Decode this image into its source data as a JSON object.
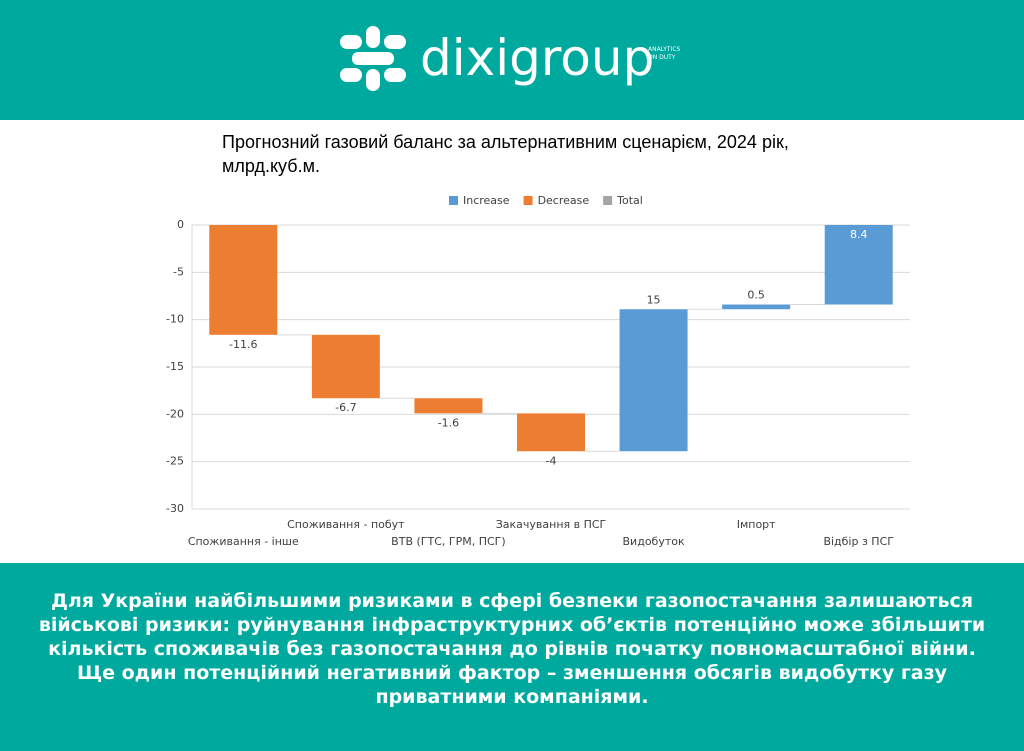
{
  "header": {
    "logo": "dixigroup",
    "tagline": [
      "ANALYTICS",
      "ON DUTY"
    ]
  },
  "chart_data": {
    "type": "waterfall",
    "title": "Прогнозний газовий баланс за альтернативним сценарієм, 2024 рік, млрд.куб.м.",
    "legend": [
      {
        "name": "Increase",
        "color": "#5b9bd5"
      },
      {
        "name": "Decrease",
        "color": "#ed7d31"
      },
      {
        "name": "Total",
        "color": "#a5a5a5"
      }
    ],
    "categories": [
      "Споживання - інше",
      "Споживання - побут",
      "ВТВ (ГТС, ГРМ, ПСГ)",
      "Закачування в ПСГ",
      "Видобуток",
      "Імпорт",
      "Відбір з ПСГ"
    ],
    "values": [
      -11.6,
      -6.7,
      -1.6,
      -4,
      15,
      0.5,
      8.4
    ],
    "ylim": [
      -30,
      0
    ],
    "yticks": [
      0,
      -5,
      -10,
      -15,
      -20,
      -25,
      -30
    ],
    "grid": true
  },
  "footer": {
    "text": "Для України найбільшими ризиками в сфері безпеки газопостачання залишаються військові ризики: руйнування інфраструктурних об’єктів потенційно може збільшити кількість споживачів без газопостачання до рівнів початку повномасштабної війни. Ще один потенційний негативний фактор – зменшення обсягів видобутку газу приватними компаніями."
  }
}
